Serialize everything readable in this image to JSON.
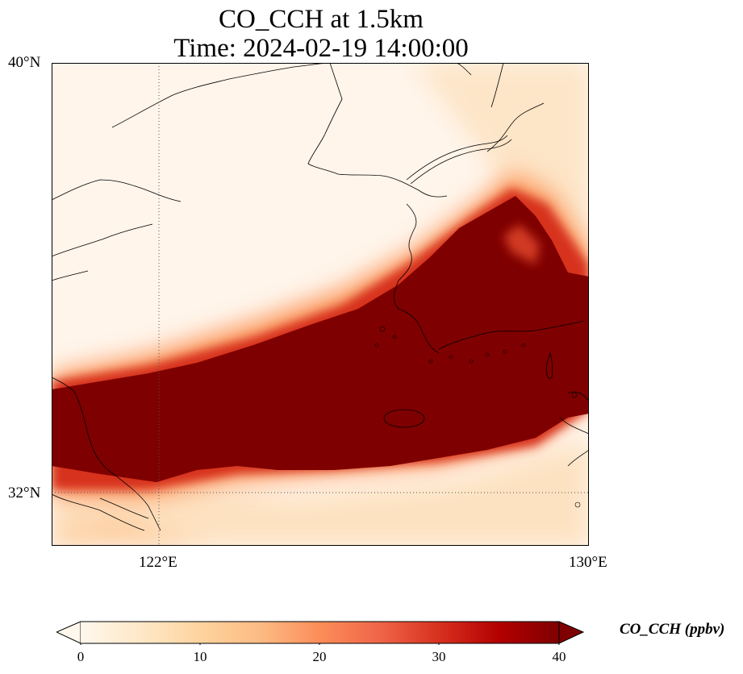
{
  "title": {
    "line1": "CO_CCH at 1.5km",
    "line2": "Time: 2024-02-19 14:00:00"
  },
  "map": {
    "lat_range": [
      31.3,
      40.0
    ],
    "lon_range": [
      120.0,
      130.0
    ],
    "lat_ticks": [
      {
        "value": 40,
        "label": "40°N"
      },
      {
        "value": 32,
        "label": "32°N"
      }
    ],
    "lon_ticks": [
      {
        "value": 122,
        "label": "122°E"
      },
      {
        "value": 130,
        "label": "130°E"
      }
    ],
    "gridlines": "dotted",
    "field_description": "high CO band (>40 ppbv) from western edge near 32.5-34°N extending northeast across the Korean Peninsula toward Japan"
  },
  "colorbar": {
    "label": "CO_CCH (ppbv)",
    "min": 0,
    "max": 40,
    "ticks": [
      "0",
      "10",
      "20",
      "30",
      "40"
    ],
    "colormap": "OrRd",
    "extend": "both",
    "colors": [
      "#fff7ec",
      "#fee8c8",
      "#fdd49e",
      "#fdbb84",
      "#fc8d59",
      "#ef6548",
      "#d7301f",
      "#b30000",
      "#7f0000"
    ]
  }
}
